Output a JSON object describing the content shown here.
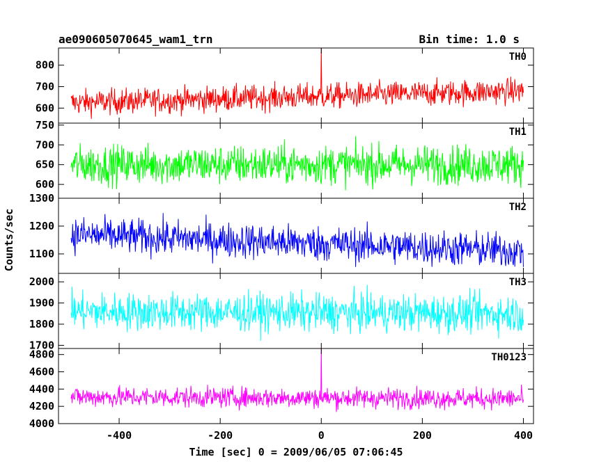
{
  "header": {
    "title": "ae090605070645_wam1_trn",
    "bin_time": "Bin time: 1.0 s"
  },
  "chart_data": {
    "type": "line",
    "xlabel": "Time [sec] 0 = 2009/06/05 07:06:45",
    "ylabel": "Counts/sec",
    "xlim": [
      -520,
      420
    ],
    "x_ticks": [
      -400,
      -200,
      0,
      200,
      400
    ],
    "x_data_range": [
      -495,
      400
    ],
    "panels": [
      {
        "name": "TH0",
        "color": "#ff0000",
        "ylim": [
          530,
          880
        ],
        "yticks": [
          600,
          700,
          800
        ],
        "level_start": 625,
        "level_end": 680,
        "noise": 30,
        "spike": {
          "x": 0,
          "y": 880
        }
      },
      {
        "name": "TH1",
        "color": "#00ff00",
        "ylim": [
          565,
          755
        ],
        "yticks": [
          600,
          650,
          700,
          750
        ],
        "level_start": 650,
        "level_end": 650,
        "noise": 25
      },
      {
        "name": "TH2",
        "color": "#0000ff",
        "ylim": [
          1030,
          1300
        ],
        "yticks": [
          1100,
          1200,
          1300
        ],
        "level_start": 1170,
        "level_end": 1110,
        "noise": 32
      },
      {
        "name": "TH3",
        "color": "#00ffff",
        "ylim": [
          1685,
          2040
        ],
        "yticks": [
          1700,
          1800,
          1900,
          2000
        ],
        "level_start": 1860,
        "level_end": 1850,
        "noise": 45
      },
      {
        "name": "TH0123",
        "color": "#ff00ff",
        "ylim": [
          4000,
          4870
        ],
        "yticks": [
          4000,
          4200,
          4400,
          4600,
          4800
        ],
        "level_start": 4310,
        "level_end": 4290,
        "noise": 60,
        "spike": {
          "x": 0,
          "y": 4870
        }
      }
    ]
  }
}
